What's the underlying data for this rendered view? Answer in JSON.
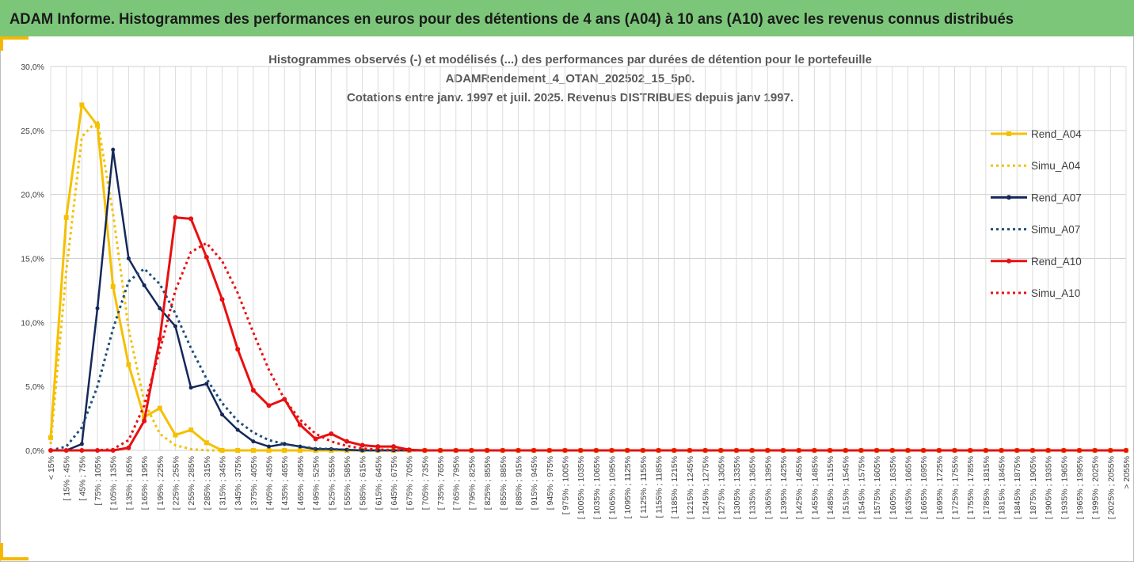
{
  "header": {
    "title": "ADAM Informe. Histogrammes des performances en euros pour des détentions de 4 ans (A04) à 10 ans (A10) avec les revenus connus distribués"
  },
  "chart_data": {
    "type": "line",
    "title": [
      "Histogrammes observés (-) et modélisés (...) des performances par durées de détention pour le portefeuille",
      "ADAMRendement_4_OTAN_202502_15_5p0.",
      "Cotations entre janv. 1997 et juil. 2025. Revenus DISTRIBUES depuis janv 1997."
    ],
    "categories": [
      "< 15%",
      "[ 15% ; 45%",
      "[ 45% ; 75%",
      "[ 75% ; 105%",
      "[ 105% ; 135%",
      "[ 135% ; 165%",
      "[ 165% ; 195%",
      "[ 195% ; 225%",
      "[ 225% ; 255%",
      "[ 255% ; 285%",
      "[ 285% ; 315%",
      "[ 315% ; 345%",
      "[ 345% ; 375%",
      "[ 375% ; 405%",
      "[ 405% ; 435%",
      "[ 435% ; 465%",
      "[ 465% ; 495%",
      "[ 495% ; 525%",
      "[ 525% ; 555%",
      "[ 555% ; 585%",
      "[ 585% ; 615%",
      "[ 615% ; 645%",
      "[ 645% ; 675%",
      "[ 675% ; 705%",
      "[ 705% ; 735%",
      "[ 735% ; 765%",
      "[ 765% ; 795%",
      "[ 795% ; 825%",
      "[ 825% ; 855%",
      "[ 855% ; 885%",
      "[ 885% ; 915%",
      "[ 915% ; 945%",
      "[ 945% ; 975%",
      "[ 975% ; 1005%",
      "[ 1005% ; 1035%",
      "[ 1035% ; 1065%",
      "[ 1065% ; 1095%",
      "[ 1095% ; 1125%",
      "[ 1125% ; 1155%",
      "[ 1155% ; 1185%",
      "[ 1185% ; 1215%",
      "[ 1215% ; 1245%",
      "[ 1245% ; 1275%",
      "[ 1275% ; 1305%",
      "[ 1305% ; 1335%",
      "[ 1335% ; 1365%",
      "[ 1365% ; 1395%",
      "[ 1395% ; 1425%",
      "[ 1425% ; 1455%",
      "[ 1455% ; 1485%",
      "[ 1485% ; 1515%",
      "[ 1515% ; 1545%",
      "[ 1545% ; 1575%",
      "[ 1575% ; 1605%",
      "[ 1605% ; 1635%",
      "[ 1635% ; 1665%",
      "[ 1665% ; 1695%",
      "[ 1695% ; 1725%",
      "[ 1725% ; 1755%",
      "[ 1755% ; 1785%",
      "[ 1785% ; 1815%",
      "[ 1815% ; 1845%",
      "[ 1845% ; 1875%",
      "[ 1875% ; 1905%",
      "[ 1905% ; 1935%",
      "[ 1935% ; 1965%",
      "[ 1965% ; 1995%",
      "[ 1995% ; 2025%",
      "[ 2025% ; 2055%",
      "> 2055%"
    ],
    "series": [
      {
        "name": "Rend_A04",
        "color": "#f5c000",
        "style": "solid",
        "marker": "square",
        "values": [
          1.0,
          18.2,
          27.0,
          25.4,
          12.8,
          6.7,
          2.6,
          3.3,
          1.2,
          1.6,
          0.6,
          0,
          0,
          0,
          0,
          0,
          0,
          0,
          0,
          0,
          0,
          0,
          0,
          0,
          0,
          0,
          0,
          0,
          0,
          0,
          0,
          0,
          0,
          0,
          0,
          0,
          0,
          0,
          0,
          0,
          0,
          0,
          0,
          0,
          0,
          0,
          0,
          0,
          0,
          0,
          0,
          0,
          0,
          0,
          0,
          0,
          0,
          0,
          0,
          0,
          0,
          0,
          0,
          0,
          0,
          0,
          0,
          0,
          0,
          0
        ]
      },
      {
        "name": "Simu_A04",
        "color": "#f5c000",
        "style": "dotted",
        "marker": null,
        "values": [
          0.5,
          14.0,
          24.5,
          25.8,
          18.5,
          9.5,
          3.8,
          1.3,
          0.4,
          0.1,
          0,
          0,
          0,
          0,
          0,
          0,
          0,
          0,
          0,
          0,
          0,
          0,
          0,
          0,
          0,
          0,
          0,
          0,
          0,
          0,
          0,
          0,
          0,
          0,
          0,
          0,
          0,
          0,
          0,
          0,
          0,
          0,
          0,
          0,
          0,
          0,
          0,
          0,
          0,
          0,
          0,
          0,
          0,
          0,
          0,
          0,
          0,
          0,
          0,
          0,
          0,
          0,
          0,
          0,
          0,
          0,
          0,
          0,
          0,
          0
        ]
      },
      {
        "name": "Rend_A07",
        "color": "#14285a",
        "style": "solid",
        "marker": "circle",
        "values": [
          0,
          0,
          0.5,
          11.1,
          23.5,
          15.0,
          12.9,
          11.1,
          9.7,
          4.9,
          5.2,
          2.8,
          1.6,
          0.7,
          0.3,
          0.5,
          0.3,
          0.1,
          0.1,
          0.05,
          0,
          0,
          0,
          0,
          0,
          0,
          0,
          0,
          0,
          0,
          0,
          0,
          0,
          0,
          0,
          0,
          0,
          0,
          0,
          0,
          0,
          0,
          0,
          0,
          0,
          0,
          0,
          0,
          0,
          0,
          0,
          0,
          0,
          0,
          0,
          0,
          0,
          0,
          0,
          0,
          0,
          0,
          0,
          0,
          0,
          0,
          0,
          0,
          0,
          0
        ]
      },
      {
        "name": "Simu_A07",
        "color": "#1f4e79",
        "style": "dotted",
        "marker": null,
        "values": [
          0,
          0.3,
          1.8,
          5.0,
          9.5,
          13.2,
          14.2,
          13.0,
          10.7,
          8.0,
          5.6,
          3.7,
          2.3,
          1.4,
          0.8,
          0.5,
          0.3,
          0.15,
          0.1,
          0.05,
          0,
          0,
          0,
          0,
          0,
          0,
          0,
          0,
          0,
          0,
          0,
          0,
          0,
          0,
          0,
          0,
          0,
          0,
          0,
          0,
          0,
          0,
          0,
          0,
          0,
          0,
          0,
          0,
          0,
          0,
          0,
          0,
          0,
          0,
          0,
          0,
          0,
          0,
          0,
          0,
          0,
          0,
          0,
          0,
          0,
          0,
          0,
          0,
          0,
          0
        ]
      },
      {
        "name": "Rend_A10",
        "color": "#e81010",
        "style": "solid",
        "marker": "circle",
        "values": [
          0,
          0,
          0,
          0,
          0,
          0.2,
          2.3,
          8.7,
          18.2,
          18.1,
          15.1,
          11.8,
          7.9,
          4.7,
          3.5,
          4.0,
          2.0,
          0.9,
          1.3,
          0.7,
          0.4,
          0.3,
          0.3,
          0.05,
          0,
          0,
          0,
          0,
          0,
          0,
          0,
          0,
          0,
          0,
          0,
          0,
          0,
          0,
          0,
          0,
          0,
          0,
          0,
          0,
          0,
          0,
          0,
          0,
          0,
          0,
          0,
          0,
          0,
          0,
          0,
          0,
          0,
          0,
          0,
          0,
          0,
          0,
          0,
          0,
          0,
          0,
          0,
          0,
          0,
          0
        ]
      },
      {
        "name": "Simu_A10",
        "color": "#e81010",
        "style": "dotted",
        "marker": null,
        "values": [
          0,
          0,
          0,
          0,
          0.1,
          0.8,
          3.5,
          7.8,
          12.5,
          15.5,
          16.2,
          14.8,
          12.3,
          9.2,
          6.3,
          4.0,
          2.4,
          1.3,
          0.7,
          0.35,
          0.15,
          0.07,
          0.03,
          0,
          0,
          0,
          0,
          0,
          0,
          0,
          0,
          0,
          0,
          0,
          0,
          0,
          0,
          0,
          0,
          0,
          0,
          0,
          0,
          0,
          0,
          0,
          0,
          0,
          0,
          0,
          0,
          0,
          0,
          0,
          0,
          0,
          0,
          0,
          0,
          0,
          0,
          0,
          0,
          0,
          0,
          0,
          0,
          0,
          0,
          0
        ]
      }
    ],
    "ylim": [
      0,
      30
    ],
    "yticks": [
      {
        "value": 0,
        "label": "0,0%"
      },
      {
        "value": 5,
        "label": "5,0%"
      },
      {
        "value": 10,
        "label": "10,0%"
      },
      {
        "value": 15,
        "label": "15,0%"
      },
      {
        "value": 20,
        "label": "20,0%"
      },
      {
        "value": 25,
        "label": "25,0%"
      },
      {
        "value": 30,
        "label": "30,0%"
      }
    ],
    "grid": true,
    "legend": "right"
  }
}
